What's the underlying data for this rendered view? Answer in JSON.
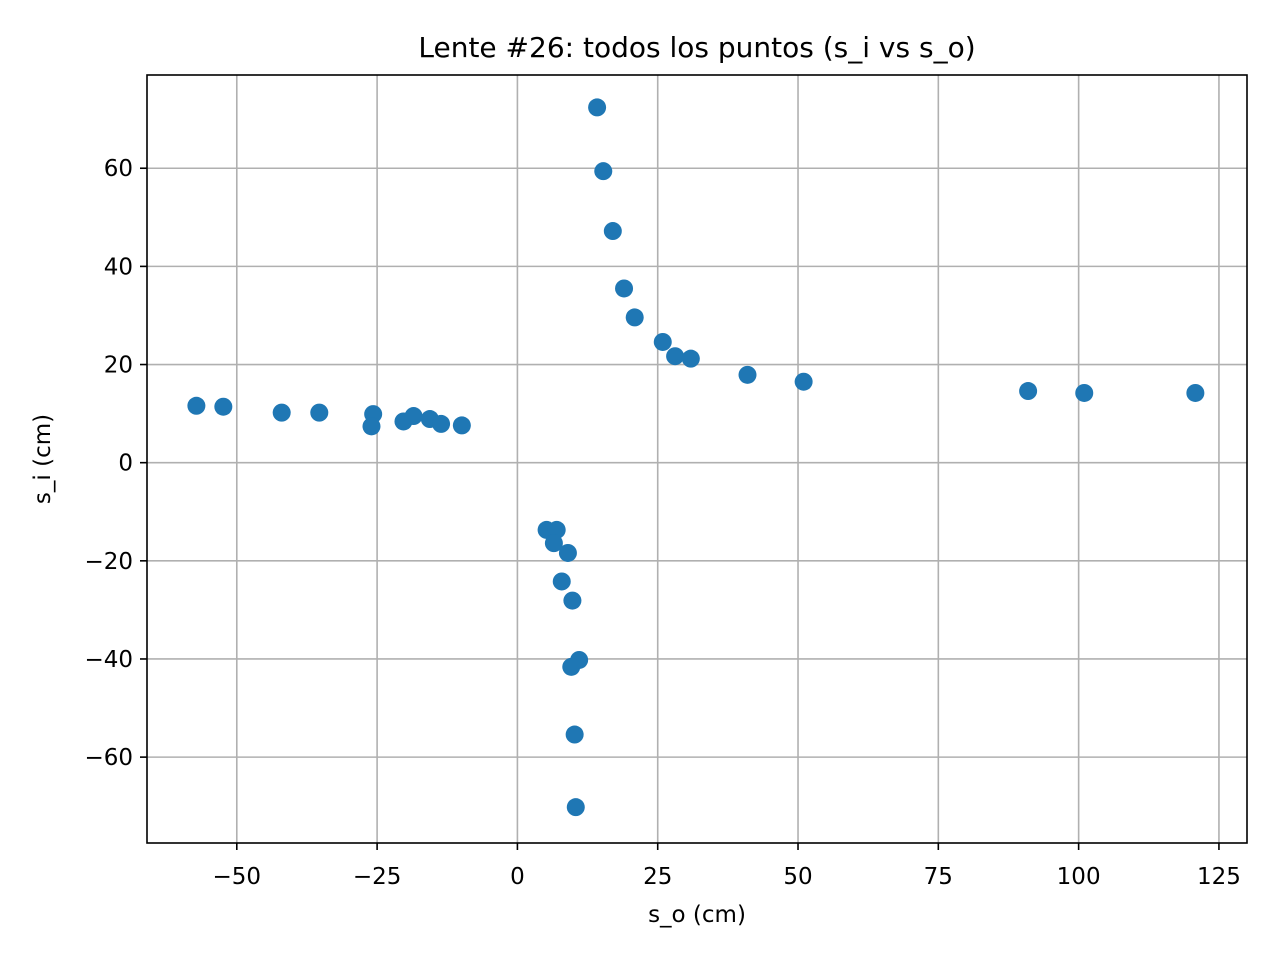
{
  "chart_data": {
    "type": "scatter",
    "title": "Lente #26: todos los puntos (s_i vs s_o)",
    "xlabel": "s_o (cm)",
    "ylabel": "s_i (cm)",
    "xlim": [
      -66,
      130
    ],
    "ylim": [
      -77.5,
      79
    ],
    "xticks": [
      -50,
      -25,
      0,
      25,
      50,
      75,
      100,
      125
    ],
    "xtick_labels": [
      "−50",
      "−25",
      "0",
      "25",
      "50",
      "75",
      "100",
      "125"
    ],
    "yticks": [
      -60,
      -40,
      -20,
      0,
      20,
      40,
      60
    ],
    "ytick_labels": [
      "−60",
      "−40",
      "−20",
      "0",
      "20",
      "40",
      "60"
    ],
    "grid": true,
    "color": "#1f77b4",
    "series": [
      {
        "points": [
          {
            "x": -57.2,
            "y": 11.6
          },
          {
            "x": -52.4,
            "y": 11.4
          },
          {
            "x": -42.0,
            "y": 10.2
          },
          {
            "x": -35.3,
            "y": 10.2
          },
          {
            "x": -25.7,
            "y": 9.9
          },
          {
            "x": -26.0,
            "y": 7.4
          },
          {
            "x": -20.3,
            "y": 8.4
          },
          {
            "x": -18.5,
            "y": 9.5
          },
          {
            "x": -15.6,
            "y": 8.9
          },
          {
            "x": -13.6,
            "y": 7.9
          },
          {
            "x": -9.9,
            "y": 7.6
          },
          {
            "x": 14.2,
            "y": 72.4
          },
          {
            "x": 15.3,
            "y": 59.4
          },
          {
            "x": 17.0,
            "y": 47.2
          },
          {
            "x": 19.0,
            "y": 35.5
          },
          {
            "x": 20.9,
            "y": 29.6
          },
          {
            "x": 25.9,
            "y": 24.6
          },
          {
            "x": 28.1,
            "y": 21.7
          },
          {
            "x": 30.9,
            "y": 21.2
          },
          {
            "x": 41.0,
            "y": 17.9
          },
          {
            "x": 51.0,
            "y": 16.5
          },
          {
            "x": 91.0,
            "y": 14.6
          },
          {
            "x": 101.0,
            "y": 14.2
          },
          {
            "x": 120.8,
            "y": 14.2
          },
          {
            "x": 5.2,
            "y": -13.7
          },
          {
            "x": 7.0,
            "y": -13.7
          },
          {
            "x": 6.5,
            "y": -16.4
          },
          {
            "x": 9.0,
            "y": -18.4
          },
          {
            "x": 7.9,
            "y": -24.2
          },
          {
            "x": 9.8,
            "y": -28.1
          },
          {
            "x": 11.0,
            "y": -40.2
          },
          {
            "x": 9.6,
            "y": -41.6
          },
          {
            "x": 10.2,
            "y": -55.4
          },
          {
            "x": 10.4,
            "y": -70.2
          }
        ]
      }
    ]
  }
}
